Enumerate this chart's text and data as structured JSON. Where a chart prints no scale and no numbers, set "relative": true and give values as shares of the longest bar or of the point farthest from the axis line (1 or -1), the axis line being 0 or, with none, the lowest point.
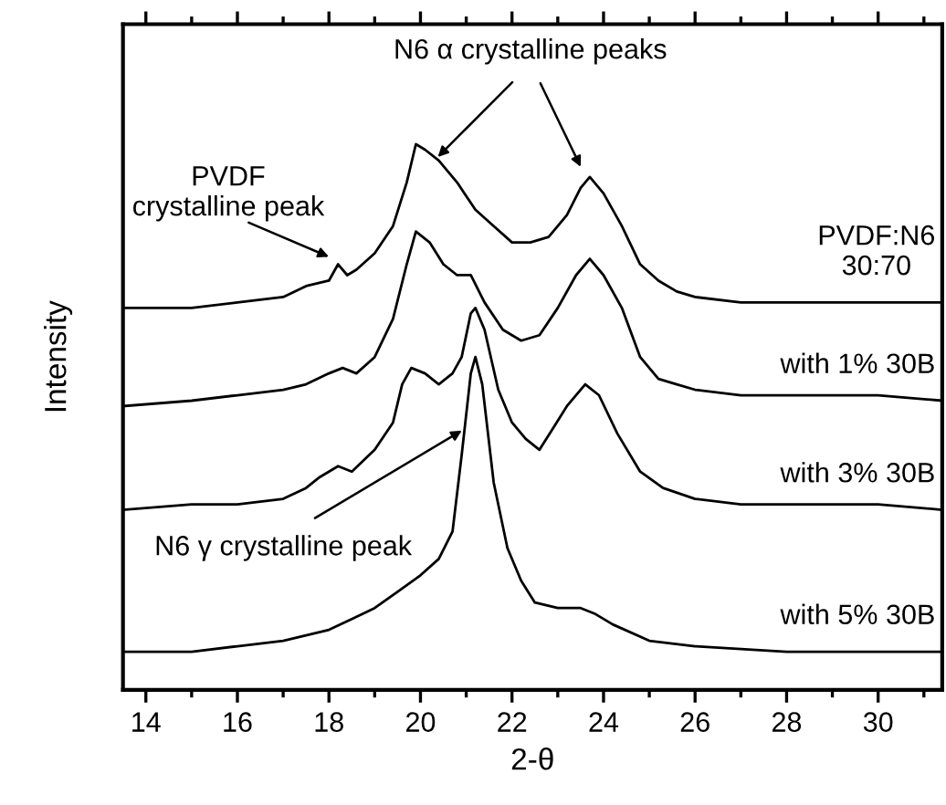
{
  "chart_data": {
    "type": "line",
    "relative": true,
    "xlabel": "2-θ",
    "ylabel": "Intensity",
    "xlim": [
      13.5,
      31.4
    ],
    "xticks": [
      14,
      16,
      18,
      20,
      22,
      24,
      26,
      28,
      30
    ],
    "tick_labels": "x",
    "series": [
      {
        "name": "PVDF:N6\n30:70",
        "color": "#000000",
        "x": [
          13.5,
          15,
          16,
          17,
          17.5,
          18,
          18.2,
          18.4,
          18.6,
          19,
          19.4,
          19.7,
          19.9,
          20.1,
          20.4,
          20.8,
          21.2,
          21.6,
          22,
          22.4,
          22.8,
          23.2,
          23.5,
          23.7,
          24,
          24.4,
          24.8,
          25.2,
          25.6,
          26,
          27,
          28,
          29,
          30,
          31.4
        ],
        "values": [
          0.7,
          0.7,
          0.71,
          0.72,
          0.74,
          0.75,
          0.78,
          0.76,
          0.77,
          0.8,
          0.85,
          0.93,
          1.0,
          0.99,
          0.97,
          0.93,
          0.88,
          0.85,
          0.82,
          0.82,
          0.83,
          0.87,
          0.92,
          0.94,
          0.91,
          0.85,
          0.78,
          0.75,
          0.73,
          0.72,
          0.71,
          0.71,
          0.71,
          0.71,
          0.71
        ]
      },
      {
        "name": "with 1% 30B",
        "color": "#000000",
        "x": [
          13.5,
          15,
          16,
          17,
          17.5,
          18,
          18.3,
          18.6,
          19,
          19.4,
          19.7,
          19.9,
          20.2,
          20.5,
          20.8,
          21.1,
          21.4,
          21.8,
          22.2,
          22.6,
          23,
          23.4,
          23.7,
          24,
          24.4,
          24.8,
          25.2,
          25.6,
          26,
          27,
          28,
          30,
          31.4
        ],
        "values": [
          0.52,
          0.53,
          0.54,
          0.55,
          0.56,
          0.58,
          0.59,
          0.58,
          0.61,
          0.68,
          0.78,
          0.84,
          0.82,
          0.78,
          0.76,
          0.76,
          0.71,
          0.66,
          0.64,
          0.65,
          0.7,
          0.76,
          0.79,
          0.76,
          0.7,
          0.61,
          0.57,
          0.56,
          0.55,
          0.54,
          0.54,
          0.54,
          0.53
        ]
      },
      {
        "name": "with 3% 30B",
        "color": "#000000",
        "x": [
          13.5,
          15,
          16,
          17,
          17.5,
          17.8,
          18.2,
          18.5,
          19,
          19.4,
          19.6,
          19.8,
          20.1,
          20.4,
          20.7,
          20.9,
          21.1,
          21.2,
          21.4,
          21.7,
          22,
          22.3,
          22.6,
          22.9,
          23.2,
          23.6,
          23.9,
          24.3,
          24.8,
          25.3,
          26,
          27,
          28,
          30,
          31.4
        ],
        "values": [
          0.33,
          0.34,
          0.34,
          0.35,
          0.37,
          0.39,
          0.41,
          0.4,
          0.44,
          0.49,
          0.56,
          0.59,
          0.58,
          0.56,
          0.58,
          0.61,
          0.69,
          0.7,
          0.66,
          0.55,
          0.49,
          0.46,
          0.44,
          0.48,
          0.52,
          0.56,
          0.54,
          0.47,
          0.4,
          0.37,
          0.35,
          0.34,
          0.34,
          0.34,
          0.33
        ]
      },
      {
        "name": "with 5% 30B",
        "color": "#000000",
        "x": [
          13.5,
          15,
          16,
          17,
          18,
          18.5,
          19,
          19.5,
          20,
          20.4,
          20.7,
          20.9,
          21.1,
          21.2,
          21.35,
          21.6,
          21.9,
          22.2,
          22.5,
          23,
          23.5,
          23.8,
          24.2,
          25,
          26,
          28,
          30,
          31.4
        ],
        "values": [
          0.07,
          0.07,
          0.08,
          0.09,
          0.11,
          0.13,
          0.15,
          0.18,
          0.21,
          0.24,
          0.29,
          0.43,
          0.58,
          0.61,
          0.56,
          0.38,
          0.26,
          0.2,
          0.16,
          0.15,
          0.15,
          0.14,
          0.12,
          0.09,
          0.08,
          0.07,
          0.07,
          0.07
        ]
      }
    ],
    "annotations": [
      {
        "text": "N6 α crystalline peaks",
        "x": 20.3,
        "y": 0.97
      },
      {
        "text": "PVDF\ncrystalline peak",
        "x": 18.1,
        "y": 0.79
      },
      {
        "text": "N6 γ crystalline peak",
        "x": 21.0,
        "y": 0.48
      }
    ]
  }
}
